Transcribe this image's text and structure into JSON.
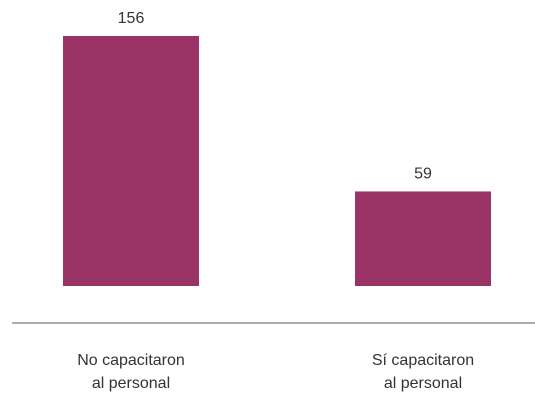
{
  "chart_data": {
    "type": "bar",
    "title": "",
    "xlabel": "",
    "ylabel": "",
    "categories": [
      [
        "No capacitaron",
        "al personal"
      ],
      [
        "Sí capacitaron",
        "al personal"
      ]
    ],
    "values": [
      156,
      59
    ],
    "data_labels": [
      "156",
      "59"
    ],
    "ylim": [
      0,
      156
    ],
    "grid": false,
    "legend": "none",
    "colors": {
      "bar": "#993366",
      "axis": "#595959",
      "text": "#333333"
    }
  }
}
